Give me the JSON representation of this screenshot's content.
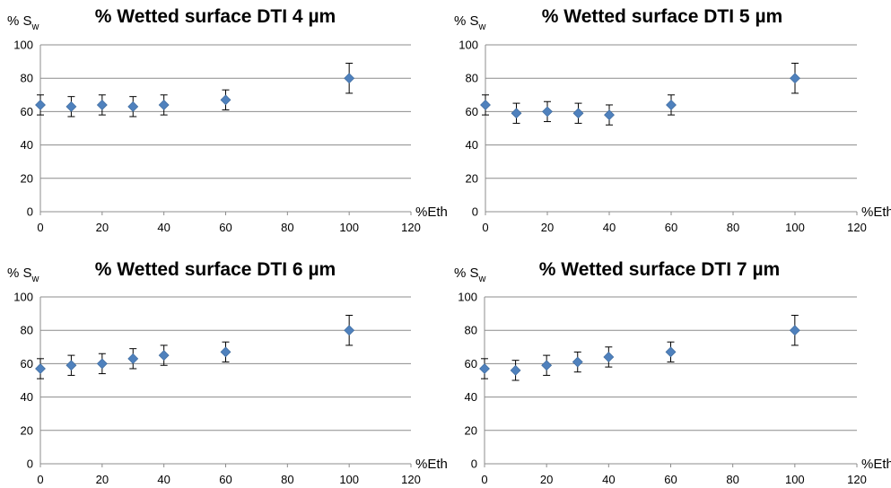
{
  "chart_data": [
    {
      "type": "scatter",
      "title": "% Wetted surface DTI 4 µm",
      "ylabel_main": "% S",
      "ylabel_sub": "w",
      "xlabel": "%Eth",
      "xlim": [
        0,
        120
      ],
      "ylim": [
        0,
        100
      ],
      "xticks": [
        "0",
        "20",
        "40",
        "60",
        "80",
        "100",
        "120"
      ],
      "yticks": [
        "0",
        "20",
        "40",
        "60",
        "80",
        "100"
      ],
      "grid": true,
      "marker_color": "#4f81bd",
      "points": [
        {
          "x": 0,
          "y": 64,
          "err": 6
        },
        {
          "x": 10,
          "y": 63,
          "err": 6
        },
        {
          "x": 20,
          "y": 64,
          "err": 6
        },
        {
          "x": 30,
          "y": 63,
          "err": 6
        },
        {
          "x": 40,
          "y": 64,
          "err": 6
        },
        {
          "x": 60,
          "y": 67,
          "err": 6
        },
        {
          "x": 100,
          "y": 80,
          "err": 9
        }
      ]
    },
    {
      "type": "scatter",
      "title": "% Wetted surface DTI 5 µm",
      "ylabel_main": "% S",
      "ylabel_sub": "w",
      "xlabel": "%Eth",
      "xlim": [
        0,
        120
      ],
      "ylim": [
        0,
        100
      ],
      "xticks": [
        "0",
        "20",
        "40",
        "60",
        "80",
        "100",
        "120"
      ],
      "yticks": [
        "0",
        "20",
        "40",
        "60",
        "80",
        "100"
      ],
      "grid": true,
      "marker_color": "#4f81bd",
      "points": [
        {
          "x": 0,
          "y": 64,
          "err": 6
        },
        {
          "x": 10,
          "y": 59,
          "err": 6
        },
        {
          "x": 20,
          "y": 60,
          "err": 6
        },
        {
          "x": 30,
          "y": 59,
          "err": 6
        },
        {
          "x": 40,
          "y": 58,
          "err": 6
        },
        {
          "x": 60,
          "y": 64,
          "err": 6
        },
        {
          "x": 100,
          "y": 80,
          "err": 9
        }
      ]
    },
    {
      "type": "scatter",
      "title": "% Wetted surface DTI 6 µm",
      "ylabel_main": "% S",
      "ylabel_sub": "w",
      "xlabel": "%Eth",
      "xlim": [
        0,
        120
      ],
      "ylim": [
        0,
        100
      ],
      "xticks": [
        "0",
        "20",
        "40",
        "60",
        "80",
        "100",
        "120"
      ],
      "yticks": [
        "0",
        "20",
        "40",
        "60",
        "80",
        "100"
      ],
      "grid": true,
      "marker_color": "#4f81bd",
      "points": [
        {
          "x": 0,
          "y": 57,
          "err": 6
        },
        {
          "x": 10,
          "y": 59,
          "err": 6
        },
        {
          "x": 20,
          "y": 60,
          "err": 6
        },
        {
          "x": 30,
          "y": 63,
          "err": 6
        },
        {
          "x": 40,
          "y": 65,
          "err": 6
        },
        {
          "x": 60,
          "y": 67,
          "err": 6
        },
        {
          "x": 100,
          "y": 80,
          "err": 9
        }
      ]
    },
    {
      "type": "scatter",
      "title": "% Wetted surface DTI 7 µm",
      "ylabel_main": "% S",
      "ylabel_sub": "w",
      "xlabel": "%Eth",
      "xlim": [
        0,
        120
      ],
      "ylim": [
        0,
        100
      ],
      "xticks": [
        "0",
        "20",
        "40",
        "60",
        "80",
        "100",
        "120"
      ],
      "yticks": [
        "0",
        "20",
        "40",
        "60",
        "80",
        "100"
      ],
      "grid": true,
      "marker_color": "#4f81bd",
      "points": [
        {
          "x": 0,
          "y": 57,
          "err": 6
        },
        {
          "x": 10,
          "y": 56,
          "err": 6
        },
        {
          "x": 20,
          "y": 59,
          "err": 6
        },
        {
          "x": 30,
          "y": 61,
          "err": 6
        },
        {
          "x": 40,
          "y": 64,
          "err": 6
        },
        {
          "x": 60,
          "y": 67,
          "err": 6
        },
        {
          "x": 100,
          "y": 80,
          "err": 9
        }
      ]
    }
  ]
}
